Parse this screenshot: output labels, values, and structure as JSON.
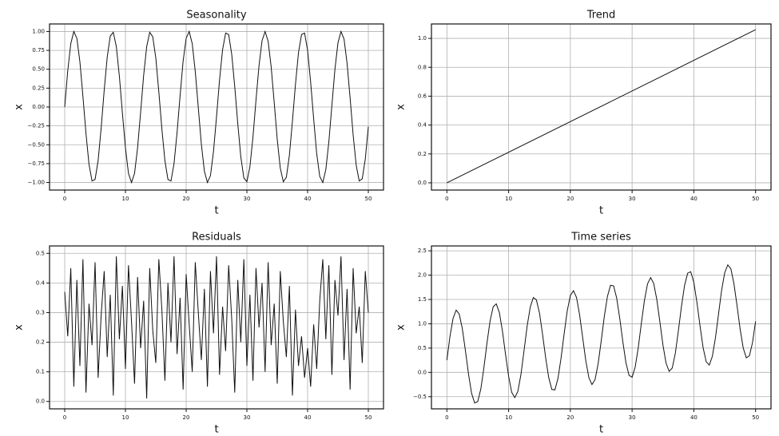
{
  "chart_data": [
    {
      "type": "line",
      "title": "Seasonality",
      "xlabel": "t",
      "ylabel": "x",
      "color": "#111111",
      "grid": true,
      "xlim": [
        -2.5,
        52.5
      ],
      "ylim": [
        -1.1,
        1.1
      ],
      "xticks": [
        0,
        10,
        20,
        30,
        40,
        50
      ],
      "yticks": [
        {
          "value": -1,
          "label": "−1.00"
        },
        {
          "value": -0.75,
          "label": "−0.75"
        },
        {
          "value": -0.5,
          "label": "−0.50"
        },
        {
          "value": -0.25,
          "label": "−0.25"
        },
        {
          "value": 0,
          "label": "0.00"
        },
        {
          "value": 0.25,
          "label": "0.25"
        },
        {
          "value": 0.5,
          "label": "0.50"
        },
        {
          "value": 0.75,
          "label": "0.75"
        },
        {
          "value": 1,
          "label": "1.00"
        }
      ],
      "x": [
        0,
        0.5,
        1,
        1.5,
        2,
        2.5,
        3,
        3.5,
        4,
        4.5,
        5,
        5.5,
        6,
        6.5,
        7,
        7.5,
        8,
        8.5,
        9,
        9.5,
        10,
        10.5,
        11,
        11.5,
        12,
        12.5,
        13,
        13.5,
        14,
        14.5,
        15,
        15.5,
        16,
        16.5,
        17,
        17.5,
        18,
        18.5,
        19,
        19.5,
        20,
        20.5,
        21,
        21.5,
        22,
        22.5,
        23,
        23.5,
        24,
        24.5,
        25,
        25.5,
        26,
        26.5,
        27,
        27.5,
        28,
        28.5,
        29,
        29.5,
        30,
        30.5,
        31,
        31.5,
        32,
        32.5,
        33,
        33.5,
        34,
        34.5,
        35,
        35.5,
        36,
        36.5,
        37,
        37.5,
        38,
        38.5,
        39,
        39.5,
        40,
        40.5,
        41,
        41.5,
        42,
        42.5,
        43,
        43.5,
        44,
        44.5,
        45,
        45.5,
        46,
        46.5,
        47,
        47.5,
        48,
        48.5,
        49,
        49.5,
        50
      ],
      "values": [
        0,
        0.48,
        0.84,
        1.0,
        0.91,
        0.6,
        0.14,
        -0.35,
        -0.76,
        -0.98,
        -0.96,
        -0.71,
        -0.28,
        0.22,
        0.66,
        0.94,
        0.99,
        0.8,
        0.41,
        -0.08,
        -0.54,
        -0.88,
        -1.0,
        -0.88,
        -0.54,
        -0.07,
        0.42,
        0.8,
        0.99,
        0.93,
        0.65,
        0.2,
        -0.29,
        -0.71,
        -0.96,
        -0.98,
        -0.75,
        -0.34,
        0.15,
        0.61,
        0.91,
        1.0,
        0.84,
        0.47,
        -0.01,
        -0.49,
        -0.85,
        -1.0,
        -0.91,
        -0.59,
        -0.13,
        0.36,
        0.76,
        0.98,
        0.96,
        0.7,
        0.27,
        -0.22,
        -0.66,
        -0.94,
        -0.99,
        -0.79,
        -0.4,
        0.09,
        0.55,
        0.88,
        1.0,
        0.87,
        0.53,
        0.06,
        -0.43,
        -0.81,
        -0.99,
        -0.93,
        -0.64,
        -0.19,
        0.3,
        0.72,
        0.96,
        0.98,
        0.75,
        0.33,
        -0.16,
        -0.62,
        -0.92,
        -1.0,
        -0.83,
        -0.46,
        0.02,
        0.5,
        0.85,
        1.0,
        0.9,
        0.58,
        0.12,
        -0.37,
        -0.77,
        -0.98,
        -0.95,
        -0.69,
        -0.26
      ]
    },
    {
      "type": "line",
      "title": "Trend",
      "xlabel": "t",
      "ylabel": "x",
      "color": "#111111",
      "grid": true,
      "xlim": [
        -2.5,
        52.5
      ],
      "ylim": [
        -0.05,
        1.1
      ],
      "xticks": [
        0,
        10,
        20,
        30,
        40,
        50
      ],
      "yticks": [
        {
          "value": 0,
          "label": "0.0"
        },
        {
          "value": 0.2,
          "label": "0.2"
        },
        {
          "value": 0.4,
          "label": "0.4"
        },
        {
          "value": 0.6,
          "label": "0.6"
        },
        {
          "value": 0.8,
          "label": "0.8"
        },
        {
          "value": 1,
          "label": "1.0"
        }
      ],
      "x": [
        0,
        50
      ],
      "values": [
        0,
        1.06
      ]
    },
    {
      "type": "line",
      "title": "Residuals",
      "xlabel": "t",
      "ylabel": "x",
      "color": "#111111",
      "grid": true,
      "xlim": [
        -2.5,
        52.5
      ],
      "ylim": [
        -0.025,
        0.525
      ],
      "xticks": [
        0,
        10,
        20,
        30,
        40,
        50
      ],
      "yticks": [
        {
          "value": 0,
          "label": "0.0"
        },
        {
          "value": 0.1,
          "label": "0.1"
        },
        {
          "value": 0.2,
          "label": "0.2"
        },
        {
          "value": 0.3,
          "label": "0.3"
        },
        {
          "value": 0.4,
          "label": "0.4"
        },
        {
          "value": 0.5,
          "label": "0.5"
        }
      ],
      "x": [
        0,
        0.5,
        1,
        1.5,
        2,
        2.5,
        3,
        3.5,
        4,
        4.5,
        5,
        5.5,
        6,
        6.5,
        7,
        7.5,
        8,
        8.5,
        9,
        9.5,
        10,
        10.5,
        11,
        11.5,
        12,
        12.5,
        13,
        13.5,
        14,
        14.5,
        15,
        15.5,
        16,
        16.5,
        17,
        17.5,
        18,
        18.5,
        19,
        19.5,
        20,
        20.5,
        21,
        21.5,
        22,
        22.5,
        23,
        23.5,
        24,
        24.5,
        25,
        25.5,
        26,
        26.5,
        27,
        27.5,
        28,
        28.5,
        29,
        29.5,
        30,
        30.5,
        31,
        31.5,
        32,
        32.5,
        33,
        33.5,
        34,
        34.5,
        35,
        35.5,
        36,
        36.5,
        37,
        37.5,
        38,
        38.5,
        39,
        39.5,
        40,
        40.5,
        41,
        41.5,
        42,
        42.5,
        43,
        43.5,
        44,
        44.5,
        45,
        45.5,
        46,
        46.5,
        47,
        47.5,
        48,
        48.5,
        49,
        49.5,
        50
      ],
      "values": [
        0.37,
        0.22,
        0.45,
        0.05,
        0.41,
        0.12,
        0.48,
        0.03,
        0.33,
        0.19,
        0.47,
        0.08,
        0.29,
        0.44,
        0.15,
        0.36,
        0.02,
        0.49,
        0.21,
        0.39,
        0.11,
        0.46,
        0.27,
        0.06,
        0.42,
        0.18,
        0.34,
        0.01,
        0.45,
        0.24,
        0.13,
        0.48,
        0.31,
        0.07,
        0.4,
        0.2,
        0.49,
        0.16,
        0.35,
        0.04,
        0.43,
        0.26,
        0.1,
        0.47,
        0.3,
        0.14,
        0.38,
        0.05,
        0.44,
        0.23,
        0.49,
        0.09,
        0.32,
        0.17,
        0.46,
        0.28,
        0.03,
        0.41,
        0.2,
        0.48,
        0.12,
        0.36,
        0.07,
        0.45,
        0.25,
        0.4,
        0.1,
        0.47,
        0.19,
        0.33,
        0.06,
        0.44,
        0.27,
        0.15,
        0.39,
        0.02,
        0.31,
        0.12,
        0.22,
        0.08,
        0.18,
        0.05,
        0.26,
        0.11,
        0.34,
        0.48,
        0.21,
        0.46,
        0.09,
        0.41,
        0.29,
        0.49,
        0.14,
        0.38,
        0.04,
        0.45,
        0.23,
        0.32,
        0.13,
        0.44,
        0.3
      ]
    },
    {
      "type": "line",
      "title": "Time series",
      "xlabel": "t",
      "ylabel": "x",
      "color": "#111111",
      "grid": true,
      "xlim": [
        -2.5,
        52.5
      ],
      "ylim": [
        -0.75,
        2.6
      ],
      "xticks": [
        0,
        10,
        20,
        30,
        40,
        50
      ],
      "yticks": [
        {
          "value": -0.5,
          "label": "−0.5"
        },
        {
          "value": 0,
          "label": "0.0"
        },
        {
          "value": 0.5,
          "label": "0.5"
        },
        {
          "value": 1,
          "label": "1.0"
        },
        {
          "value": 1.5,
          "label": "1.5"
        },
        {
          "value": 2,
          "label": "2.0"
        },
        {
          "value": 2.5,
          "label": "2.5"
        }
      ],
      "x": [
        0,
        0.5,
        1,
        1.5,
        2,
        2.5,
        3,
        3.5,
        4,
        4.5,
        5,
        5.5,
        6,
        6.5,
        7,
        7.5,
        8,
        8.5,
        9,
        9.5,
        10,
        10.5,
        11,
        11.5,
        12,
        12.5,
        13,
        13.5,
        14,
        14.5,
        15,
        15.5,
        16,
        16.5,
        17,
        17.5,
        18,
        18.5,
        19,
        19.5,
        20,
        20.5,
        21,
        21.5,
        22,
        22.5,
        23,
        23.5,
        24,
        24.5,
        25,
        25.5,
        26,
        26.5,
        27,
        27.5,
        28,
        28.5,
        29,
        29.5,
        30,
        30.5,
        31,
        31.5,
        32,
        32.5,
        33,
        33.5,
        34,
        34.5,
        35,
        35.5,
        36,
        36.5,
        37,
        37.5,
        38,
        38.5,
        39,
        39.5,
        40,
        40.5,
        41,
        41.5,
        42,
        42.5,
        43,
        43.5,
        44,
        44.5,
        45,
        45.5,
        46,
        46.5,
        47,
        47.5,
        48,
        48.5,
        49,
        49.5,
        50
      ],
      "values": [
        0.25,
        0.74,
        1.11,
        1.28,
        1.2,
        0.9,
        0.45,
        -0.03,
        -0.43,
        -0.63,
        -0.6,
        -0.34,
        0.1,
        0.61,
        1.06,
        1.35,
        1.41,
        1.23,
        0.85,
        0.37,
        -0.08,
        -0.41,
        -0.52,
        -0.39,
        -0.04,
        0.45,
        0.95,
        1.34,
        1.54,
        1.49,
        1.22,
        0.78,
        0.3,
        -0.11,
        -0.35,
        -0.36,
        -0.12,
        0.3,
        0.8,
        1.27,
        1.58,
        1.68,
        1.54,
        1.18,
        0.71,
        0.24,
        -0.11,
        -0.25,
        -0.15,
        0.18,
        0.65,
        1.15,
        1.56,
        1.79,
        1.78,
        1.53,
        1.11,
        0.63,
        0.2,
        -0.06,
        -0.1,
        0.11,
        0.51,
        1.01,
        1.48,
        1.82,
        1.95,
        1.83,
        1.5,
        1.04,
        0.56,
        0.19,
        0.02,
        0.09,
        0.39,
        0.86,
        1.36,
        1.79,
        2.04,
        2.07,
        1.85,
        1.44,
        0.96,
        0.51,
        0.22,
        0.15,
        0.33,
        0.71,
        1.2,
        1.69,
        2.05,
        2.21,
        2.13,
        1.82,
        1.37,
        0.89,
        0.5,
        0.3,
        0.34,
        0.61,
        1.05
      ]
    }
  ]
}
